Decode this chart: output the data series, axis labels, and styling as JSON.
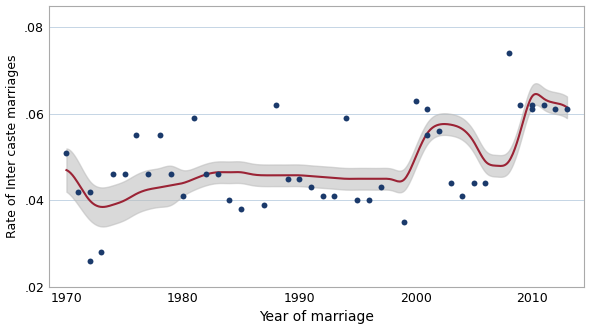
{
  "xlabel": "Year of marriage",
  "ylabel": "Rate of Inter caste marriages",
  "xlim": [
    1968.5,
    2014.5
  ],
  "ylim": [
    0.02,
    0.085
  ],
  "yticks": [
    0.02,
    0.04,
    0.06,
    0.08
  ],
  "ytick_labels": [
    ".02",
    ".04",
    ".06",
    ".08"
  ],
  "xticks": [
    1970,
    1980,
    1990,
    2000,
    2010
  ],
  "scatter_color": "#1b3a6b",
  "line_color": "#9b2335",
  "ci_color": "#bbbbbb",
  "background_color": "#ffffff",
  "scatter_points": [
    [
      1970,
      0.051
    ],
    [
      1971,
      0.042
    ],
    [
      1972,
      0.042
    ],
    [
      1972,
      0.026
    ],
    [
      1973,
      0.028
    ],
    [
      1974,
      0.046
    ],
    [
      1975,
      0.046
    ],
    [
      1976,
      0.055
    ],
    [
      1977,
      0.046
    ],
    [
      1978,
      0.055
    ],
    [
      1979,
      0.046
    ],
    [
      1980,
      0.041
    ],
    [
      1981,
      0.059
    ],
    [
      1982,
      0.046
    ],
    [
      1983,
      0.046
    ],
    [
      1984,
      0.04
    ],
    [
      1985,
      0.038
    ],
    [
      1987,
      0.039
    ],
    [
      1988,
      0.062
    ],
    [
      1989,
      0.045
    ],
    [
      1990,
      0.045
    ],
    [
      1991,
      0.043
    ],
    [
      1992,
      0.041
    ],
    [
      1993,
      0.041
    ],
    [
      1994,
      0.059
    ],
    [
      1995,
      0.04
    ],
    [
      1996,
      0.04
    ],
    [
      1997,
      0.043
    ],
    [
      1999,
      0.035
    ],
    [
      2000,
      0.063
    ],
    [
      2001,
      0.061
    ],
    [
      2001,
      0.055
    ],
    [
      2002,
      0.056
    ],
    [
      2003,
      0.044
    ],
    [
      2004,
      0.041
    ],
    [
      2005,
      0.044
    ],
    [
      2006,
      0.044
    ],
    [
      2008,
      0.074
    ],
    [
      2009,
      0.062
    ],
    [
      2010,
      0.062
    ],
    [
      2010,
      0.061
    ],
    [
      2011,
      0.062
    ],
    [
      2012,
      0.061
    ],
    [
      2013,
      0.061
    ]
  ],
  "smooth_knots_x": [
    1970,
    1971,
    1972,
    1973,
    1974,
    1975,
    1976,
    1977,
    1978,
    1979,
    1980,
    1981,
    1982,
    1983,
    1984,
    1985,
    1986,
    1987,
    1988,
    1989,
    1990,
    1991,
    1992,
    1993,
    1994,
    1995,
    1996,
    1997,
    1998,
    1999,
    2000,
    2001,
    2002,
    2003,
    2004,
    2005,
    2006,
    2007,
    2008,
    2009,
    2010,
    2011,
    2012,
    2013
  ],
  "smooth_knots_y": [
    0.047,
    0.044,
    0.04,
    0.0385,
    0.039,
    0.04,
    0.0415,
    0.0425,
    0.043,
    0.0435,
    0.044,
    0.045,
    0.046,
    0.0465,
    0.0465,
    0.0465,
    0.046,
    0.0458,
    0.0458,
    0.0458,
    0.0458,
    0.0456,
    0.0454,
    0.0452,
    0.045,
    0.045,
    0.045,
    0.045,
    0.0448,
    0.0448,
    0.05,
    0.0555,
    0.0575,
    0.0575,
    0.0565,
    0.0535,
    0.049,
    0.048,
    0.049,
    0.056,
    0.064,
    0.0635,
    0.0625,
    0.0615
  ],
  "ci_knots_lower": [
    0.042,
    0.039,
    0.0355,
    0.034,
    0.0345,
    0.0355,
    0.037,
    0.038,
    0.0385,
    0.039,
    0.041,
    0.0425,
    0.0435,
    0.044,
    0.044,
    0.044,
    0.0435,
    0.0433,
    0.0433,
    0.0433,
    0.0433,
    0.0431,
    0.0429,
    0.0427,
    0.0425,
    0.0425,
    0.0425,
    0.0425,
    0.0423,
    0.0423,
    0.0475,
    0.053,
    0.055,
    0.055,
    0.054,
    0.051,
    0.0465,
    0.0455,
    0.0465,
    0.0535,
    0.0615,
    0.061,
    0.06,
    0.059
  ],
  "ci_knots_upper": [
    0.052,
    0.049,
    0.0445,
    0.043,
    0.0435,
    0.0445,
    0.046,
    0.047,
    0.0475,
    0.048,
    0.047,
    0.0475,
    0.0485,
    0.049,
    0.049,
    0.049,
    0.0485,
    0.0483,
    0.0483,
    0.0483,
    0.0483,
    0.0481,
    0.0479,
    0.0477,
    0.0475,
    0.0475,
    0.0475,
    0.0475,
    0.0473,
    0.0473,
    0.0525,
    0.058,
    0.06,
    0.06,
    0.059,
    0.056,
    0.0515,
    0.0505,
    0.0515,
    0.0585,
    0.0665,
    0.066,
    0.065,
    0.064
  ]
}
